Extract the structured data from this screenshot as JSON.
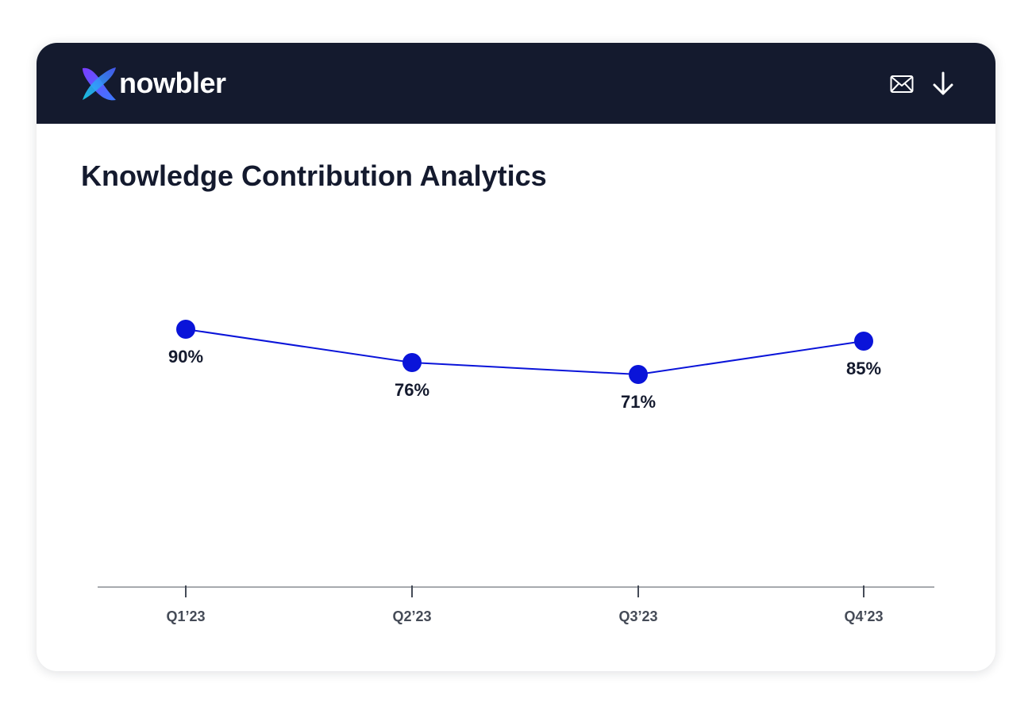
{
  "header": {
    "brand": "nowbler",
    "actions": [
      {
        "icon": "mail-icon",
        "label": "Email"
      },
      {
        "icon": "download-icon",
        "label": "Download"
      }
    ],
    "background_color": "#141a2e"
  },
  "chart_data": {
    "type": "line",
    "title": "Knowledge Contribution Analytics",
    "categories": [
      "Q1’23",
      "Q2’23",
      "Q3’23",
      "Q4’23"
    ],
    "series": [
      {
        "values": [
          90,
          76,
          71,
          85
        ],
        "labels": [
          "90%",
          "76%",
          "71%",
          "85%"
        ],
        "color": "#0a14d9"
      }
    ],
    "xlabel": "",
    "ylabel": "",
    "grid": false,
    "legend": "none"
  }
}
